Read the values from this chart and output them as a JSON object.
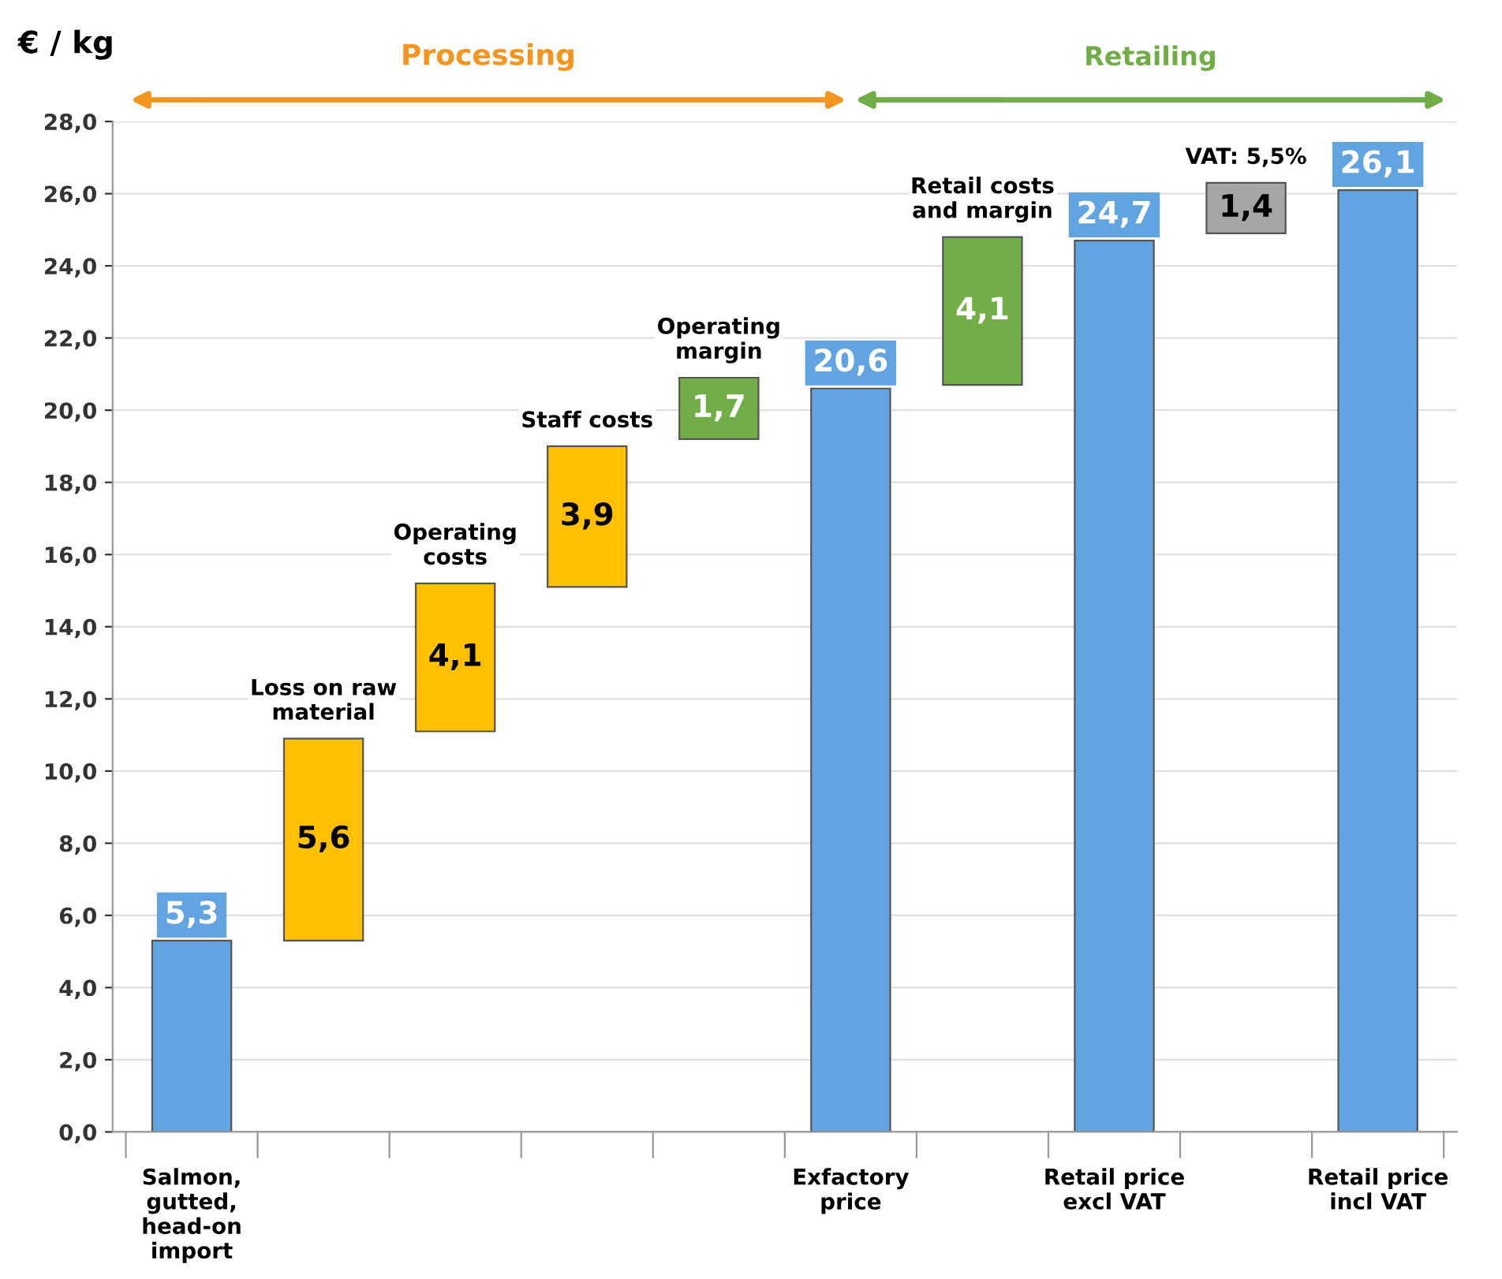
{
  "chart_data": {
    "type": "bar",
    "ylabel": "€ / kg",
    "categories": [
      "Salmon, gutted, head-on import",
      "Loss on raw material",
      "Operating costs",
      "Staff costs",
      "Operating margin",
      "Exfactory price",
      "Retail costs and margin",
      "Retail price excl VAT",
      "VAT: 5,5%",
      "Retail price incl VAT"
    ],
    "values": [
      5.3,
      5.6,
      4.1,
      3.9,
      1.7,
      20.6,
      4.1,
      24.7,
      1.4,
      26.1
    ],
    "base": [
      0,
      5.3,
      11.1,
      15.1,
      19.2,
      0,
      20.7,
      0,
      24.9,
      0
    ],
    "colors": [
      "#62a3e2",
      "#ffc000",
      "#ffc000",
      "#ffc000",
      "#72ae48",
      "#62a3e2",
      "#72ae48",
      "#62a3e2",
      "#a6a6a6",
      "#62a3e2"
    ],
    "data_labels": true,
    "value_labels": [
      "5,3",
      "5,6",
      "4,1",
      "3,9",
      "1,7",
      "20,6",
      "4,1",
      "24,7",
      "1,4",
      "26,1"
    ],
    "ylim": [
      0,
      28
    ],
    "yticks": [
      {
        "value": 0,
        "label": "0,0"
      },
      {
        "value": 2,
        "label": "2,0"
      },
      {
        "value": 4,
        "label": "4,0"
      },
      {
        "value": 6,
        "label": "6,0"
      },
      {
        "value": 8,
        "label": "8,0"
      },
      {
        "value": 10,
        "label": "10,0"
      },
      {
        "value": 12,
        "label": "12,0"
      },
      {
        "value": 14,
        "label": "14,0"
      },
      {
        "value": 16,
        "label": "16,0"
      },
      {
        "value": 18,
        "label": "18,0"
      },
      {
        "value": 20,
        "label": "20,0"
      },
      {
        "value": 22,
        "label": "22,0"
      },
      {
        "value": 24,
        "label": "24,0"
      },
      {
        "value": 26,
        "label": "26,0"
      },
      {
        "value": 28,
        "label": "28,0"
      }
    ],
    "grid": "y",
    "annotations": [
      "Processing",
      "Retailing"
    ]
  }
}
